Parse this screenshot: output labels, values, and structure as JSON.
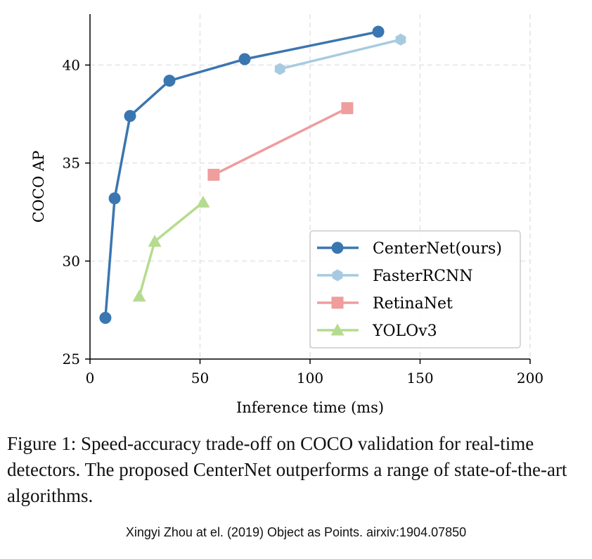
{
  "chart_data": {
    "type": "line",
    "xlabel": "Inference time (ms)",
    "ylabel": "COCO AP",
    "xlim": [
      0,
      200
    ],
    "ylim": [
      25,
      42.6
    ],
    "xticks": [
      0,
      50,
      100,
      150,
      200
    ],
    "yticks": [
      25,
      30,
      35,
      40
    ],
    "grid": true,
    "grid_style": "dashed",
    "legend_placement": "lower-right",
    "series": [
      {
        "name": "CenterNet(ours)",
        "color": "#3a76b0",
        "marker": "circle",
        "x": [
          7.0,
          11.2,
          18.2,
          36.1,
          70.3,
          131.0
        ],
        "y": [
          27.1,
          33.2,
          37.4,
          39.2,
          40.3,
          41.7
        ]
      },
      {
        "name": "FasterRCNN",
        "color": "#a6cbe1",
        "marker": "hexagon",
        "x": [
          86.3,
          141.2
        ],
        "y": [
          39.8,
          41.3
        ]
      },
      {
        "name": "RetinaNet",
        "color": "#ef9d9d",
        "marker": "square",
        "x": [
          56.2,
          116.9
        ],
        "y": [
          34.4,
          37.8
        ]
      },
      {
        "name": "YOLOv3",
        "color": "#b5dc8e",
        "marker": "triangle",
        "x": [
          22.4,
          29.4,
          51.4
        ],
        "y": [
          28.2,
          31.0,
          33.0
        ]
      }
    ]
  },
  "caption": "Figure 1: Speed-accuracy trade-off on COCO validation for real-time detectors. The proposed CenterNet outperforms a range of state-of-the-art algorithms.",
  "credit": "Xingyi Zhou at el. (2019) Object as Points. airxiv:1904.07850"
}
